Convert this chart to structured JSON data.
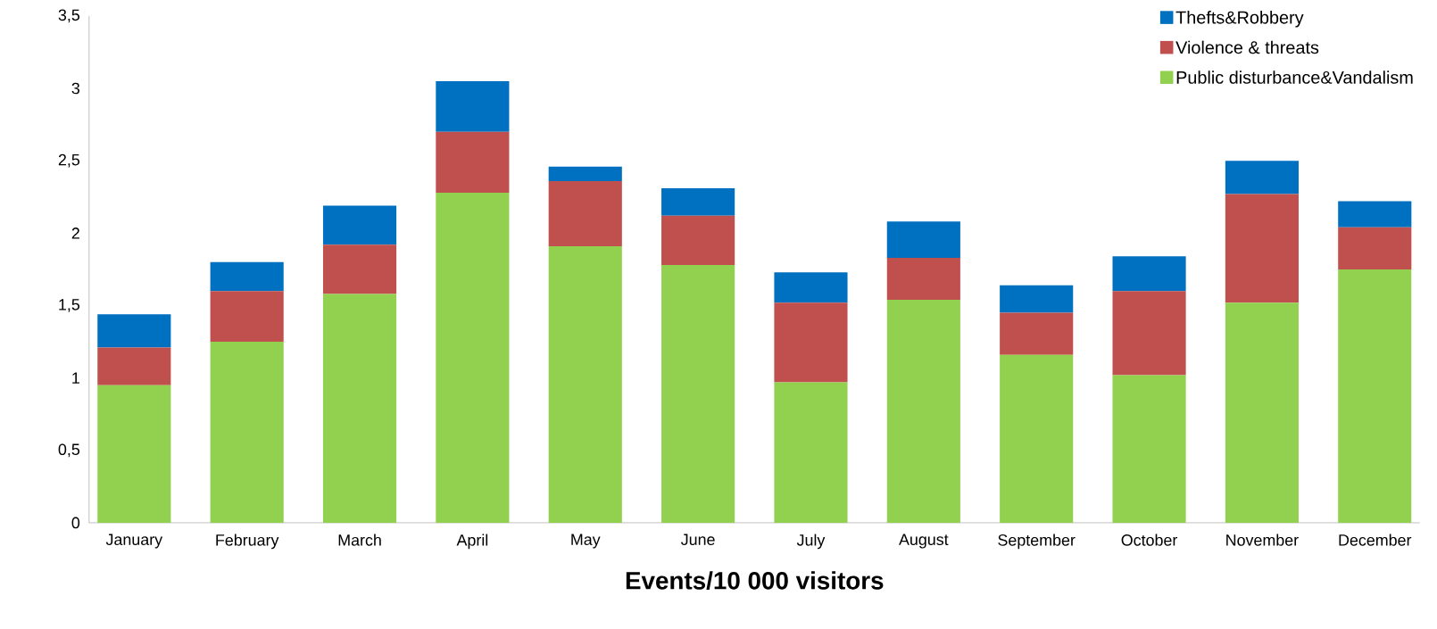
{
  "chart_data": {
    "type": "bar",
    "stacked": true,
    "xlabel": "Events/10 000 visitors",
    "categories": [
      "January",
      "February",
      "March",
      "April",
      "May",
      "June",
      "July",
      "August",
      "September",
      "October",
      "November",
      "December"
    ],
    "series": [
      {
        "name": "Public disturbance&Vandalism",
        "color": "#92d050",
        "values": [
          0.95,
          1.25,
          1.58,
          2.28,
          1.91,
          1.78,
          0.97,
          1.54,
          1.16,
          1.02,
          1.52,
          1.75
        ]
      },
      {
        "name": "Violence & threats",
        "color": "#c0504d",
        "values": [
          0.26,
          0.35,
          0.34,
          0.42,
          0.45,
          0.34,
          0.55,
          0.29,
          0.29,
          0.58,
          0.75,
          0.29
        ]
      },
      {
        "name": "Thefts&Robbery",
        "color": "#0070c0",
        "values": [
          0.23,
          0.2,
          0.27,
          0.35,
          0.1,
          0.19,
          0.21,
          0.25,
          0.19,
          0.24,
          0.23,
          0.18
        ]
      }
    ],
    "ylim": [
      0,
      3.5
    ],
    "yticks": [
      0,
      {
        "value": 0.5,
        "label": "0,5"
      },
      1,
      {
        "value": 1.5,
        "label": "1,5"
      },
      2,
      {
        "value": 2.5,
        "label": "2,5"
      },
      3,
      {
        "value": 3.5,
        "label": "3,5"
      }
    ],
    "legend": "top right"
  }
}
